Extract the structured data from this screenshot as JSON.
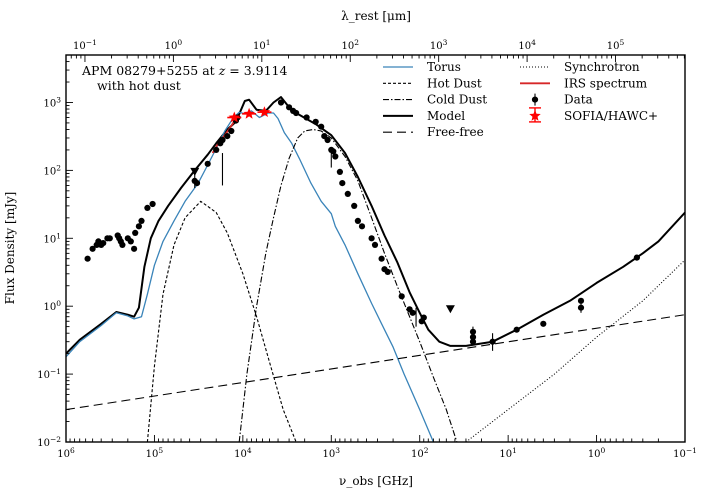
{
  "chart_data": {
    "type": "sed-line-scatter",
    "annotation": {
      "line1": "APM 08279+5255 at z = 3.9114",
      "line2": "with hot dust"
    },
    "xlabel_bottom": "ν_obs [GHz]",
    "xlabel_top": "λ_rest [μm]",
    "ylabel": "Flux Density [mJy]",
    "x_scale": "log-reversed",
    "xlim_ghz": [
      1000000,
      0.1
    ],
    "ylim_mjy": [
      0.01,
      5000
    ],
    "x_ticks": [
      {
        "value": 1000000,
        "exp": "6"
      },
      {
        "value": 100000,
        "exp": "5"
      },
      {
        "value": 10000,
        "exp": "4"
      },
      {
        "value": 1000,
        "exp": "3"
      },
      {
        "value": 100,
        "exp": "2"
      },
      {
        "value": 10,
        "exp": "1"
      },
      {
        "value": 1,
        "exp": "0"
      },
      {
        "value": 0.1,
        "exp": "−1"
      }
    ],
    "y_ticks": [
      {
        "value": 0.01,
        "exp": "−2"
      },
      {
        "value": 0.1,
        "exp": "−1"
      },
      {
        "value": 1,
        "exp": "0"
      },
      {
        "value": 10,
        "exp": "1"
      },
      {
        "value": 100,
        "exp": "2"
      },
      {
        "value": 1000,
        "exp": "3"
      }
    ],
    "top_ticks_um": [
      {
        "value": 0.1,
        "exp": "−1"
      },
      {
        "value": 1,
        "exp": "0"
      },
      {
        "value": 10,
        "exp": "1"
      },
      {
        "value": 100,
        "exp": "2"
      },
      {
        "value": 1000,
        "exp": "3"
      },
      {
        "value": 10000,
        "exp": "4"
      },
      {
        "value": 100000,
        "exp": "5"
      }
    ],
    "redshift": 3.9114,
    "legend_col1": [
      {
        "label": "Torus",
        "style": "torus"
      },
      {
        "label": "Hot Dust",
        "style": "dashed-short"
      },
      {
        "label": "Cold Dust",
        "style": "dashdot"
      },
      {
        "label": "Model",
        "style": "solid"
      },
      {
        "label": "Free-free",
        "style": "dashed-long"
      }
    ],
    "legend_col2": [
      {
        "label": "Synchrotron",
        "style": "dotted"
      },
      {
        "label": "IRS spectrum",
        "style": "irs"
      },
      {
        "label": "Data",
        "style": "data"
      },
      {
        "label": "SOFIA/HAWC+",
        "style": "sofia"
      }
    ],
    "colors": {
      "torus": "#3a84b9",
      "irs": "#d62728",
      "sofia": "#ff0000",
      "black": "#000000"
    },
    "series": [
      {
        "name": "Model",
        "style": "solid",
        "points": [
          [
            1000000,
            0.2
          ],
          [
            700000,
            0.32
          ],
          [
            400000,
            0.55
          ],
          [
            270000,
            0.82
          ],
          [
            200000,
            0.75
          ],
          [
            170000,
            0.7
          ],
          [
            150000,
            0.95
          ],
          [
            130000,
            3.8
          ],
          [
            110000,
            10
          ],
          [
            90000,
            18
          ],
          [
            70000,
            30
          ],
          [
            50000,
            55
          ],
          [
            35000,
            100
          ],
          [
            25000,
            170
          ],
          [
            20000,
            250
          ],
          [
            15000,
            400
          ],
          [
            12000,
            520
          ],
          [
            9500,
            1050
          ],
          [
            8500,
            1100
          ],
          [
            7000,
            780
          ],
          [
            5500,
            750
          ],
          [
            4500,
            1000
          ],
          [
            3700,
            1200
          ],
          [
            3000,
            850
          ],
          [
            2500,
            700
          ],
          [
            1500,
            480
          ],
          [
            1000,
            330
          ],
          [
            700,
            180
          ],
          [
            500,
            80
          ],
          [
            350,
            30
          ],
          [
            250,
            11
          ],
          [
            180,
            4.5
          ],
          [
            130,
            1.6
          ],
          [
            100,
            0.8
          ],
          [
            80,
            0.45
          ],
          [
            60,
            0.3
          ],
          [
            45,
            0.26
          ],
          [
            30,
            0.26
          ],
          [
            15,
            0.3
          ],
          [
            8,
            0.45
          ],
          [
            4,
            0.75
          ],
          [
            2,
            1.2
          ],
          [
            1,
            2.2
          ],
          [
            0.5,
            3.8
          ],
          [
            0.3,
            6
          ],
          [
            0.2,
            9
          ],
          [
            0.1,
            24
          ]
        ]
      },
      {
        "name": "Torus",
        "style": "torus",
        "points": [
          [
            1000000,
            0.18
          ],
          [
            700000,
            0.3
          ],
          [
            400000,
            0.52
          ],
          [
            270000,
            0.8
          ],
          [
            200000,
            0.72
          ],
          [
            170000,
            0.65
          ],
          [
            140000,
            0.7
          ],
          [
            120000,
            1.5
          ],
          [
            100000,
            4
          ],
          [
            80000,
            9
          ],
          [
            60000,
            18
          ],
          [
            45000,
            35
          ],
          [
            32000,
            65
          ],
          [
            25000,
            120
          ],
          [
            20000,
            210
          ],
          [
            16000,
            380
          ],
          [
            13000,
            580
          ],
          [
            11000,
            720
          ],
          [
            9500,
            680
          ],
          [
            8000,
            750
          ],
          [
            6500,
            600
          ],
          [
            5200,
            700
          ],
          [
            4500,
            700
          ],
          [
            4000,
            580
          ],
          [
            3400,
            360
          ],
          [
            2800,
            250
          ],
          [
            2300,
            150
          ],
          [
            1700,
            65
          ],
          [
            1300,
            35
          ],
          [
            1000,
            23
          ],
          [
            900,
            15
          ],
          [
            700,
            8
          ],
          [
            500,
            3
          ],
          [
            350,
            1.1
          ],
          [
            250,
            0.45
          ],
          [
            200,
            0.25
          ],
          [
            150,
            0.1
          ],
          [
            100,
            0.03
          ],
          [
            70,
            0.01
          ]
        ]
      },
      {
        "name": "Hot Dust",
        "style": "dashed-short",
        "points": [
          [
            120000,
            0.01
          ],
          [
            100000,
            0.13
          ],
          [
            80000,
            1.5
          ],
          [
            60000,
            8
          ],
          [
            45000,
            20
          ],
          [
            30000,
            35
          ],
          [
            20000,
            24
          ],
          [
            15000,
            12
          ],
          [
            10000,
            3
          ],
          [
            7000,
            0.7
          ],
          [
            5000,
            0.15
          ],
          [
            3500,
            0.03
          ],
          [
            2500,
            0.01
          ]
        ]
      },
      {
        "name": "Cold Dust",
        "style": "dashdot",
        "points": [
          [
            11000,
            0.01
          ],
          [
            9000,
            0.1
          ],
          [
            7000,
            1
          ],
          [
            5500,
            6
          ],
          [
            4500,
            20
          ],
          [
            3700,
            60
          ],
          [
            3000,
            150
          ],
          [
            2400,
            300
          ],
          [
            2000,
            380
          ],
          [
            1600,
            400
          ],
          [
            1300,
            380
          ],
          [
            1000,
            300
          ],
          [
            700,
            160
          ],
          [
            500,
            70
          ],
          [
            350,
            20
          ],
          [
            250,
            6
          ],
          [
            180,
            2
          ],
          [
            130,
            0.7
          ],
          [
            100,
            0.3
          ],
          [
            70,
            0.09
          ],
          [
            50,
            0.03
          ],
          [
            38,
            0.01
          ]
        ]
      },
      {
        "name": "Free-free",
        "style": "dashed-long",
        "points": [
          [
            1000000,
            0.03
          ],
          [
            0.1,
            0.75
          ]
        ]
      },
      {
        "name": "Synchrotron",
        "style": "dotted",
        "points": [
          [
            30,
            0.01
          ],
          [
            10,
            0.03
          ],
          [
            3,
            0.1
          ],
          [
            1,
            0.35
          ],
          [
            0.3,
            1.2
          ],
          [
            0.1,
            4.8
          ]
        ]
      },
      {
        "name": "IRS spectrum",
        "style": "irs",
        "points": [
          [
            22000,
            180
          ],
          [
            19000,
            250
          ],
          [
            16000,
            330
          ],
          [
            14000,
            420
          ],
          [
            12500,
            530
          ]
        ]
      }
    ],
    "data_points": [
      [
        570000,
        5
      ],
      [
        500000,
        7
      ],
      [
        450000,
        8
      ],
      [
        430000,
        9
      ],
      [
        400000,
        8
      ],
      [
        380000,
        8.5
      ],
      [
        340000,
        10
      ],
      [
        320000,
        10
      ],
      [
        260000,
        11
      ],
      [
        250000,
        10
      ],
      [
        240000,
        9
      ],
      [
        230000,
        8
      ],
      [
        200000,
        10
      ],
      [
        185000,
        9
      ],
      [
        170000,
        7
      ],
      [
        165000,
        12
      ],
      [
        150000,
        15
      ],
      [
        140000,
        18
      ],
      [
        120000,
        28
      ],
      [
        105000,
        32
      ],
      [
        35000,
        70
      ],
      [
        33000,
        65
      ],
      [
        25000,
        125
      ],
      [
        20000,
        200
      ],
      [
        18000,
        250
      ],
      [
        17000,
        280
      ],
      [
        15000,
        320
      ],
      [
        13500,
        380
      ],
      [
        12000,
        540
      ],
      [
        11500,
        600
      ],
      [
        3700,
        1000
      ],
      [
        3000,
        850
      ],
      [
        2700,
        750
      ],
      [
        2500,
        700
      ],
      [
        1900,
        600
      ],
      [
        1500,
        520
      ],
      [
        1300,
        440
      ],
      [
        1200,
        320
      ],
      [
        1100,
        280
      ],
      [
        1000,
        200
      ],
      [
        950,
        190
      ],
      [
        900,
        160
      ],
      [
        800,
        95
      ],
      [
        750,
        65
      ],
      [
        650,
        45
      ],
      [
        550,
        30
      ],
      [
        500,
        18
      ],
      [
        450,
        15
      ],
      [
        350,
        10
      ],
      [
        320,
        8
      ],
      [
        270,
        5
      ],
      [
        250,
        3.5
      ],
      [
        230,
        3.2
      ],
      [
        160,
        1.4
      ],
      [
        130,
        0.9
      ],
      [
        120,
        0.8
      ],
      [
        95,
        0.6
      ],
      [
        90,
        0.68
      ],
      [
        25,
        0.3
      ],
      [
        25,
        0.35
      ],
      [
        25,
        0.42
      ],
      [
        15,
        0.3
      ],
      [
        8,
        0.45
      ],
      [
        4,
        0.55
      ],
      [
        1.5,
        0.95
      ],
      [
        1.5,
        1.2
      ],
      [
        0.35,
        5.2
      ]
    ],
    "error_bars": [
      {
        "x": 35000,
        "y": 70,
        "lo": 55,
        "hi": 95
      },
      {
        "x": 17000,
        "y": 105,
        "lo": 60,
        "hi": 180
      },
      {
        "x": 110,
        "y": 0.7,
        "lo": 0.5,
        "hi": 0.95
      },
      {
        "x": 25,
        "y": 0.4,
        "lo": 0.3,
        "hi": 0.5
      },
      {
        "x": 15,
        "y": 0.3,
        "lo": 0.22,
        "hi": 0.4
      },
      {
        "x": 1000,
        "y": 150,
        "lo": 110,
        "hi": 200
      },
      {
        "x": 1.5,
        "y": 0.95,
        "lo": 0.8,
        "hi": 1.15
      }
    ],
    "upper_limits": [
      [
        35000,
        95
      ],
      [
        45,
        0.9
      ]
    ],
    "sofia_points": [
      {
        "x": 12500,
        "y": 600
      },
      {
        "x": 8500,
        "y": 680
      },
      {
        "x": 5700,
        "y": 720
      }
    ]
  }
}
